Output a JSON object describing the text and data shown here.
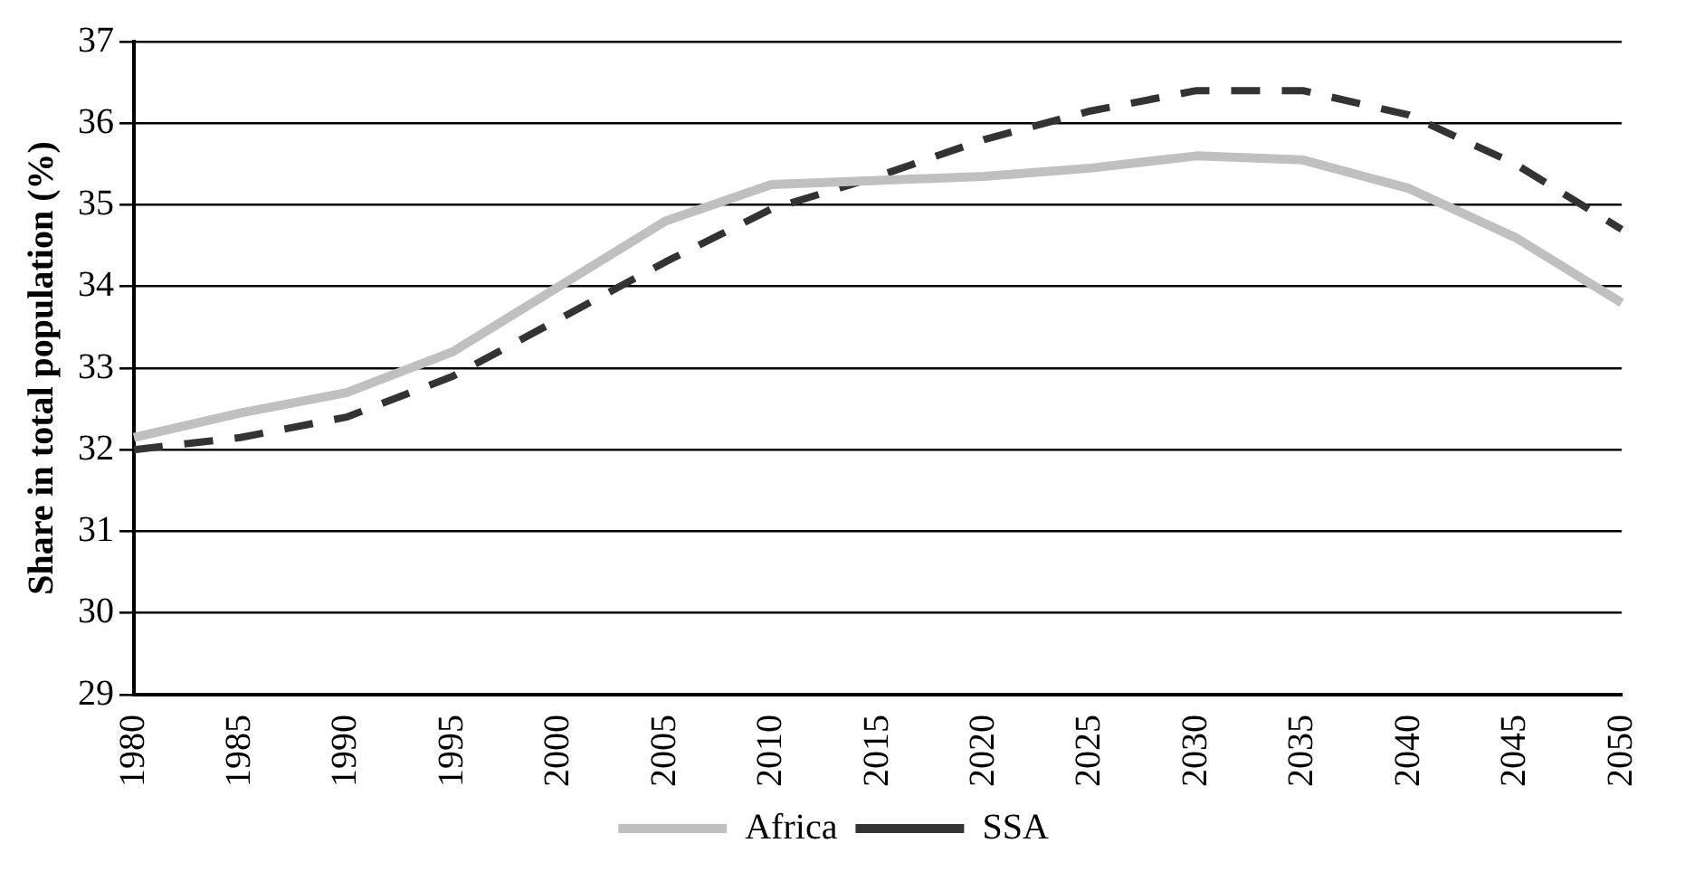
{
  "chart_data": {
    "type": "line",
    "ylabel": "Share in total population (%)",
    "categories": [
      "1980",
      "1985",
      "1990",
      "1995",
      "2000",
      "2005",
      "2010",
      "2015",
      "2020",
      "2025",
      "2030",
      "2035",
      "2040",
      "2045",
      "2050"
    ],
    "series": [
      {
        "name": "Africa",
        "color": "#c0c0c0",
        "line_style": "solid",
        "values": [
          32.15,
          32.45,
          32.7,
          33.2,
          34.0,
          34.8,
          35.25,
          35.3,
          35.35,
          35.45,
          35.6,
          35.55,
          35.2,
          34.6,
          33.8
        ]
      },
      {
        "name": "SSA",
        "color": "#333333",
        "line_style": "dashed",
        "values": [
          32.0,
          32.15,
          32.4,
          32.9,
          33.6,
          34.3,
          34.95,
          35.35,
          35.8,
          36.15,
          36.4,
          36.4,
          36.1,
          35.5,
          34.7
        ]
      }
    ],
    "ylim": [
      29,
      37
    ],
    "yticks": [
      29,
      30,
      31,
      32,
      33,
      34,
      35,
      36,
      37
    ],
    "grid": "y",
    "legend": "bottom",
    "marker": "none"
  }
}
